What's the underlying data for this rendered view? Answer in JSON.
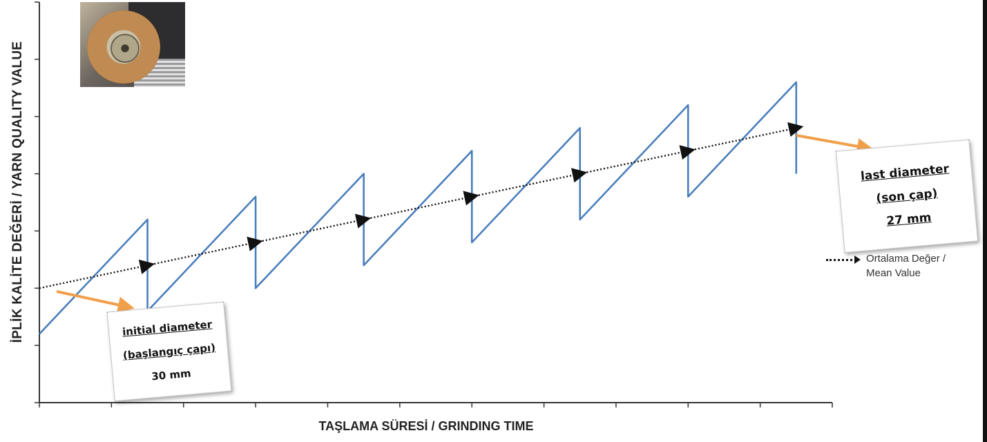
{
  "chart_data": {
    "type": "line",
    "title": "",
    "xlabel": "TAŞLAMA SÜRESİ / GRINDING TIME",
    "ylabel": "İPLİK KALİTE DEĞERİ / YARN QUALITY VALUE",
    "xlim": [
      0,
      11
    ],
    "ylim": [
      0,
      7
    ],
    "grid": false,
    "x_tick_count": 12,
    "y_tick_count": 8,
    "series": [
      {
        "color": "#4a7ebb",
        "style": "solid",
        "points": [
          [
            0.0,
            1.2
          ],
          [
            1.5,
            3.2
          ],
          [
            1.5,
            1.6
          ],
          [
            3.0,
            3.6
          ],
          [
            3.0,
            2.0
          ],
          [
            4.5,
            4.0
          ],
          [
            4.5,
            2.4
          ],
          [
            6.0,
            4.4
          ],
          [
            6.0,
            2.8
          ],
          [
            7.5,
            4.8
          ],
          [
            7.5,
            3.2
          ],
          [
            9.0,
            5.2
          ],
          [
            9.0,
            3.6
          ],
          [
            10.5,
            5.6
          ],
          [
            10.5,
            4.0
          ]
        ]
      },
      {
        "name": "Ortalama Değer / Mean Value",
        "color": "#111111",
        "style": "dotted",
        "points": [
          [
            0.0,
            2.0
          ],
          [
            1.5,
            2.4
          ],
          [
            3.0,
            2.8
          ],
          [
            4.5,
            3.2
          ],
          [
            6.0,
            3.6
          ],
          [
            7.5,
            4.0
          ],
          [
            9.0,
            4.4
          ],
          [
            10.5,
            4.8
          ]
        ]
      }
    ],
    "annotations": {
      "initial": {
        "line1": "initial diameter",
        "line2": "(başlangıç çapı)",
        "line3": "30 mm"
      },
      "last": {
        "line1": "last diameter",
        "line2": "(son çap)",
        "line3": "27 mm"
      }
    },
    "legend": {
      "position": "right",
      "label_line1": "Ortalama Değer /",
      "label_line2": "Mean Value"
    },
    "colors": {
      "series": "#4a7ebb",
      "mean": "#111111",
      "callout_arrow": "#f0a04b"
    }
  },
  "image": {
    "icon": "grinding-wheel-photo"
  }
}
